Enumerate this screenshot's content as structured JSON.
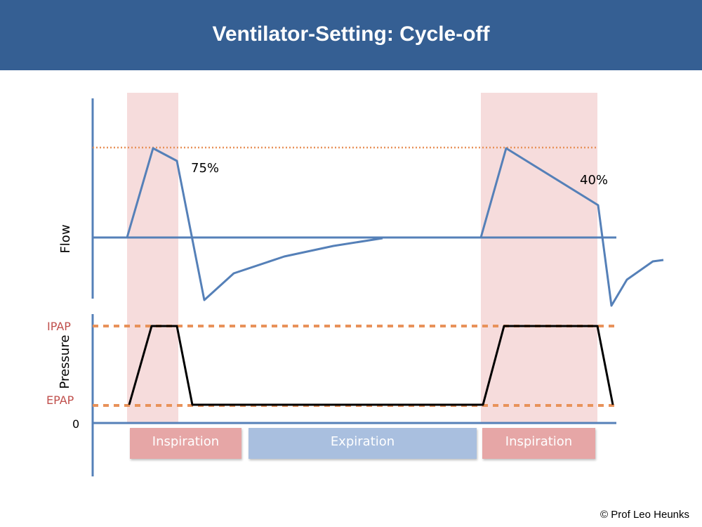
{
  "header": {
    "title": "Ventilator-Setting: Cycle-off",
    "background": "#355f93"
  },
  "flow_panel": {
    "axis_label": "Flow",
    "annotations": [
      "75%",
      "40%"
    ],
    "line_color": "#5580b8",
    "threshold_color": "#e8925a"
  },
  "pressure_panel": {
    "axis_label": "Pressure",
    "levels": {
      "ipap": "IPAP",
      "epap": "EPAP",
      "zero": "0"
    },
    "level_color": "#c0504d",
    "line_color": "#000000"
  },
  "phases": [
    "Inspiration",
    "Expiration",
    "Inspiration"
  ],
  "colors": {
    "inspiration_shading": "#f6dcdc",
    "inspiration_box": "#e6a6a6",
    "expiration_box": "#a9bfdf"
  },
  "footer": {
    "copyright": "© Prof Leo Heunks"
  }
}
